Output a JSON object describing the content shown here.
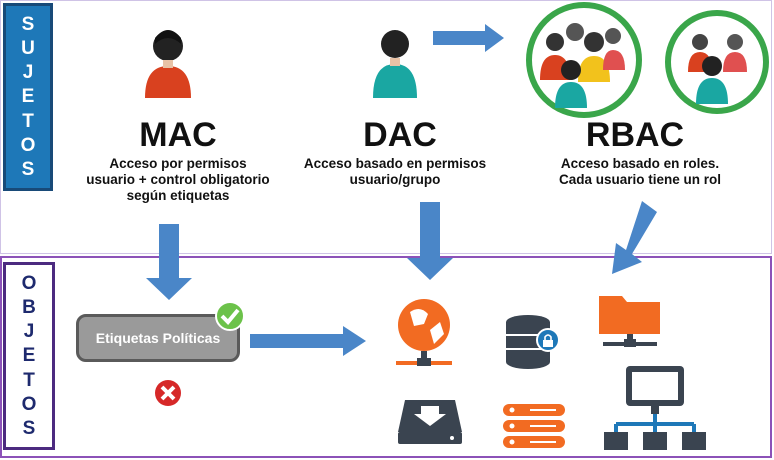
{
  "sujetos_label": [
    "S",
    "U",
    "J",
    "E",
    "T",
    "O",
    "S"
  ],
  "objetos_label": [
    "O",
    "B",
    "J",
    "E",
    "T",
    "O",
    "S"
  ],
  "models": [
    {
      "title": "MAC",
      "desc": [
        "Acceso por permisos",
        "usuario + control obligatorio",
        "según etiquetas"
      ]
    },
    {
      "title": "DAC",
      "desc": [
        "Acceso basado en permisos",
        "usuario/grupo"
      ]
    },
    {
      "title": "RBAC",
      "desc": [
        "Acceso basado en roles.",
        "Cada usuario tiene un rol"
      ]
    }
  ],
  "tag_label": "Etiquetas Políticas",
  "colors": {
    "arrow": "#4a86c8",
    "accent_orange": "#f26b22",
    "dark_icon": "#3a4450",
    "green_circle": "#3aa64a",
    "check_green": "#6cc24a",
    "deny_red": "#d62828"
  },
  "icons": [
    "person-red-icon",
    "person-teal-icon",
    "group-roles-icon",
    "group-roles-small-icon",
    "check-icon",
    "deny-icon",
    "globe-server-icon",
    "database-lock-icon",
    "server-rack-icon",
    "download-tray-icon",
    "folder-network-icon",
    "computer-network-icon"
  ]
}
